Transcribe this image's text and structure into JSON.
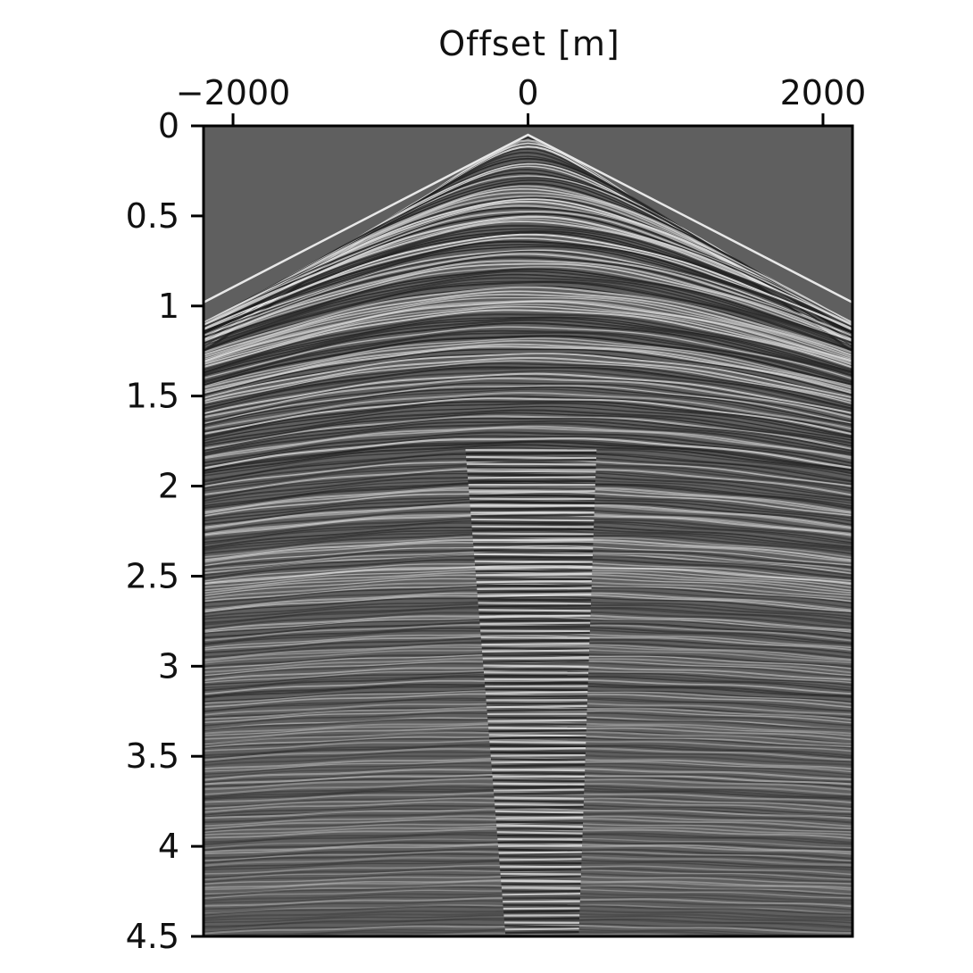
{
  "chart_data": {
    "type": "heatmap",
    "title": "",
    "xlabel": "Offset [m]",
    "ylabel": "",
    "x_axis_position": "top",
    "xlim": [
      -2200,
      2200
    ],
    "ylim": [
      0,
      4.5
    ],
    "y_inverted": true,
    "grid": false,
    "colormap": "grayscale",
    "xticks": [
      {
        "value": -2000,
        "label": "−2000"
      },
      {
        "value": 0,
        "label": "0"
      },
      {
        "value": 2000,
        "label": "2000"
      }
    ],
    "yticks": [
      {
        "value": 0,
        "label": "0"
      },
      {
        "value": 0.5,
        "label": "0.5"
      },
      {
        "value": 1,
        "label": "1"
      },
      {
        "value": 1.5,
        "label": "1.5"
      },
      {
        "value": 2,
        "label": "2"
      },
      {
        "value": 2.5,
        "label": "2.5"
      },
      {
        "value": 3,
        "label": "3"
      },
      {
        "value": 3.5,
        "label": "3.5"
      },
      {
        "value": 4,
        "label": "4"
      },
      {
        "value": 4.5,
        "label": "4.5"
      }
    ],
    "first_arrival": {
      "offsets": [
        -2200,
        0,
        2200
      ],
      "times": [
        0.98,
        0.05,
        0.98
      ]
    },
    "colors": {
      "background": "#5f5f5f",
      "frame": "#000000"
    }
  }
}
